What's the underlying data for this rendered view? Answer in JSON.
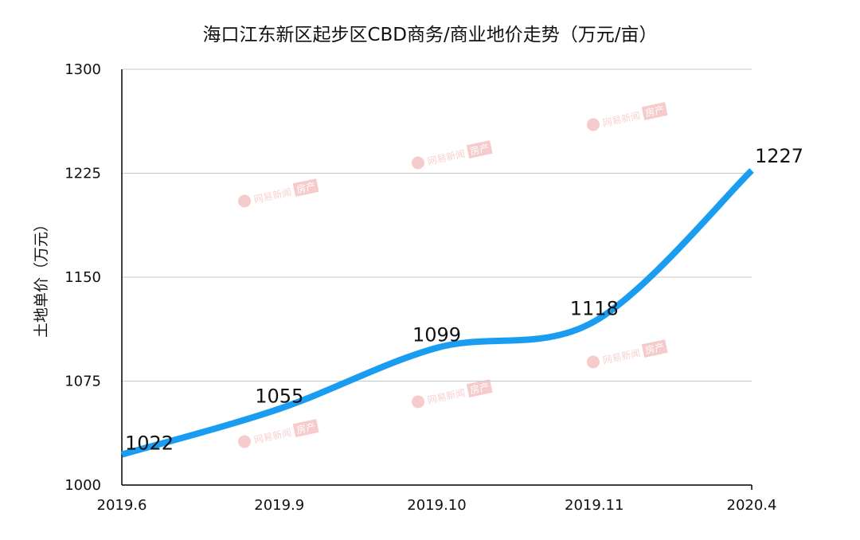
{
  "chart_data": {
    "type": "line",
    "title": "海口江东新区起步区CBD商务/商业地价走势（万元/亩）",
    "ylabel": "土地单价（万元）",
    "xlabel": "",
    "categories": [
      "2019.6",
      "2019.9",
      "2019.10",
      "2019.11",
      "2020.4"
    ],
    "series": [
      {
        "values": [
          1022,
          1055,
          1099,
          1118,
          1227
        ]
      }
    ],
    "ylim": [
      1000,
      1300
    ],
    "yticks": [
      1000,
      1075,
      1150,
      1225,
      1300
    ],
    "grid": true,
    "line_color": "#1a9cf0"
  },
  "watermark": {
    "label": "网易新闻",
    "badge": "房产"
  }
}
